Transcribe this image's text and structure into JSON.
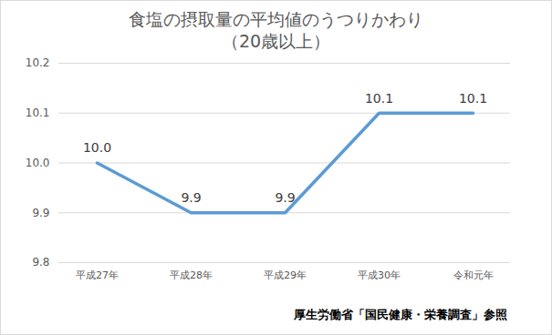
{
  "chart_data": {
    "type": "line",
    "title": "食塩の摂取量の平均値のうつりかわり",
    "subtitle": "（20歳以上）",
    "caption": "厚生労働省「国民健康・栄養調査」参照",
    "categories": [
      "平成27年",
      "平成28年",
      "平成29年",
      "平成30年",
      "令和元年"
    ],
    "values": [
      10.0,
      9.9,
      9.9,
      10.1,
      10.1
    ],
    "value_labels": [
      "10.0",
      "9.9",
      "9.9",
      "10.1",
      "10.1"
    ],
    "color": "#5b9bd5",
    "ylim": [
      9.8,
      10.2
    ],
    "yticks": [
      9.8,
      9.9,
      {
        "value": 10,
        "label": "10.0"
      },
      10.1,
      10.2
    ],
    "grid": true,
    "data_labels": true
  }
}
